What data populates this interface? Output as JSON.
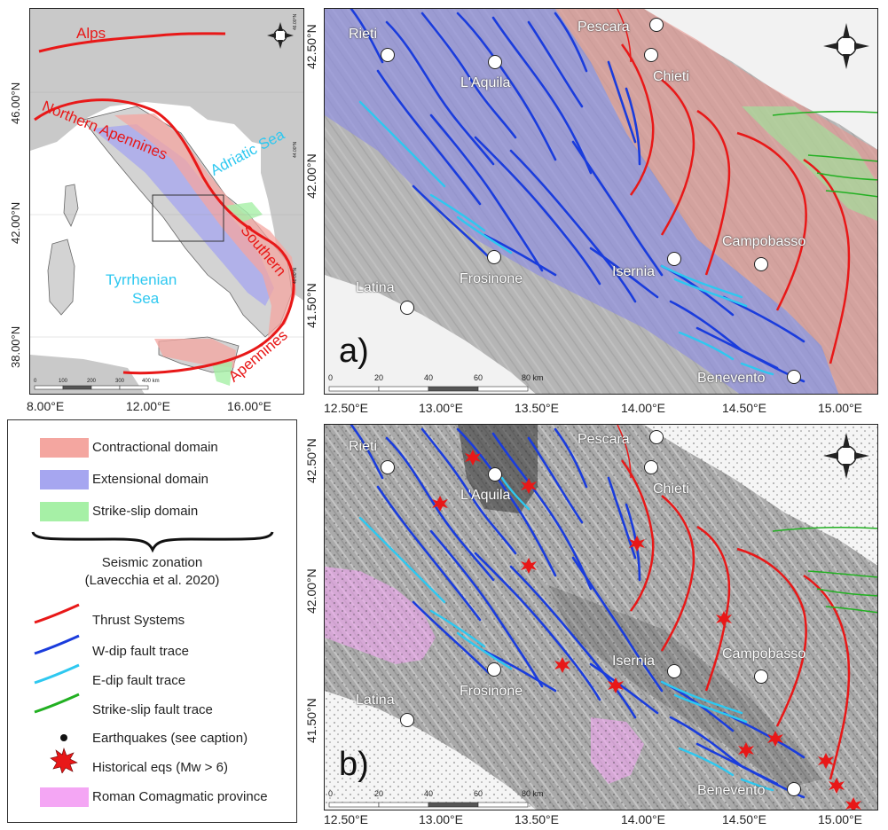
{
  "overview_map": {
    "labels": {
      "alps": "Alps",
      "northern_apennines": "Northern Apennines",
      "adriatic_sea": "Adriatic Sea",
      "southern": "Southern",
      "apennines": "Apennines",
      "tyrrhenian": "Tyrrhenian",
      "sea": "Sea"
    },
    "lat_labels": [
      "46.00°N",
      "42.00°N",
      "38.00°N"
    ],
    "lon_labels": [
      "8.00°E",
      "12.00°E",
      "16.00°E"
    ],
    "scale_labels": [
      "0",
      "100",
      "200",
      "300",
      "400 km"
    ],
    "inner_lat_labels": [
      "46.00°N",
      "44.00°N",
      "40.00°N"
    ]
  },
  "map_a": {
    "panel_letter": "a)",
    "cities": {
      "rieti": "Rieti",
      "laquila": "L'Aquila",
      "pescara": "Pescara",
      "chieti": "Chieti",
      "campobasso": "Campobasso",
      "isernia": "Isernia",
      "frosinone": "Frosinone",
      "latina": "Latina",
      "benevento": "Benevento"
    },
    "lat_labels": [
      "42.50°N",
      "42.00°N",
      "41.50°N"
    ],
    "scale_labels": [
      "0",
      "20",
      "40",
      "60",
      "80 km"
    ]
  },
  "map_b": {
    "panel_letter": "b)",
    "cities": {
      "rieti": "Rieti",
      "laquila": "L'Aquila",
      "pescara": "Pescara",
      "chieti": "Chieti",
      "campobasso": "Campobasso",
      "isernia": "Isernia",
      "frosinone": "Frosinone",
      "latina": "Latina",
      "benevento": "Benevento"
    },
    "lat_labels": [
      "42.50°N",
      "42.00°N",
      "41.50°N"
    ],
    "scale_labels": [
      "0",
      "20",
      "40",
      "60",
      "80 km"
    ]
  },
  "lon_labels_a": [
    "12.50°E",
    "13.00°E",
    "13.50°E",
    "14.00°E",
    "14.50°E",
    "15.00°E"
  ],
  "lon_labels_b": [
    "12.50°E",
    "13.00°E",
    "13.50°E",
    "14.00°E",
    "14.50°E",
    "15.00°E"
  ],
  "legend": {
    "contractional": "Contractional domain",
    "extensional": "Extensional domain",
    "strike_slip": "Strike-slip domain",
    "seismic_zonation": "Seismic zonation",
    "citation": "(Lavecchia et al. 2020)",
    "thrust": "Thrust Systems",
    "w_dip": "W-dip fault trace",
    "e_dip": "E-dip fault trace",
    "strike_slip_fault": "Strike-slip fault trace",
    "earthquakes": "Earthquakes (see caption)",
    "historical": "Historical eqs (Mw > 6)",
    "roman": "Roman Comagmatic province"
  },
  "colors": {
    "contractional": "#f4a6a0",
    "extensional": "#a6a6f0",
    "strike_slip": "#a6f0a6",
    "thrust": "#e81818",
    "w_dip": "#1a3cdc",
    "e_dip": "#2ec8f0",
    "strike_slip_fault": "#22b022",
    "roman": "#f4a6f4"
  },
  "icons": [
    "north-arrow-icon",
    "star-icon"
  ]
}
